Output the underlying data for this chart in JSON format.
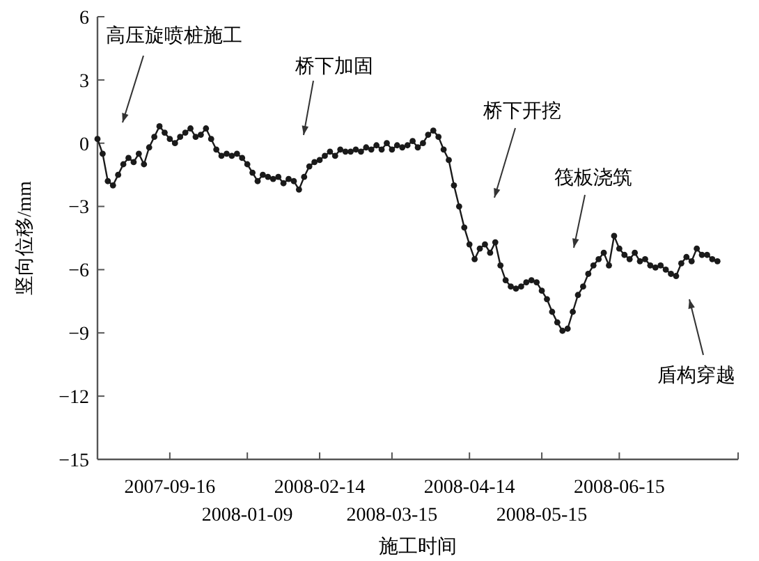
{
  "chart_data": {
    "type": "line",
    "xlabel": "施工时间",
    "ylabel": "竖向位移/mm",
    "marker": "circle",
    "line_style": "solid",
    "categories": [
      null,
      null,
      null,
      null,
      null,
      null,
      null,
      null,
      null,
      null,
      null,
      null,
      null,
      null,
      "2007-09-16",
      null,
      null,
      null,
      null,
      null,
      null,
      null,
      null,
      null,
      null,
      null,
      null,
      null,
      null,
      "2008-01-09",
      null,
      null,
      null,
      null,
      null,
      null,
      null,
      null,
      null,
      null,
      null,
      null,
      null,
      "2008-02-14",
      null,
      null,
      null,
      null,
      null,
      null,
      null,
      null,
      null,
      null,
      null,
      null,
      null,
      "2008-03-15",
      null,
      null,
      null,
      null,
      null,
      null,
      null,
      null,
      null,
      null,
      null,
      null,
      null,
      null,
      "2008-04-14",
      null,
      null,
      null,
      null,
      null,
      null,
      null,
      null,
      null,
      null,
      null,
      null,
      null,
      "2008-05-15",
      null,
      null,
      null,
      null,
      null,
      null,
      null,
      null,
      null,
      null,
      null,
      null,
      null,
      null,
      "2008-06-15",
      null,
      null,
      null,
      null,
      null,
      null,
      null,
      null,
      null,
      null,
      null,
      null,
      null,
      null,
      null,
      null,
      null,
      null,
      null
    ],
    "ylim": [
      -15,
      6
    ],
    "yticks": [
      -15,
      -12,
      -9,
      -6,
      -3,
      0,
      3,
      6
    ],
    "annotations": [
      "高压旋喷桩施工",
      "桥下加固",
      "桥下开挖",
      "筏板浇筑",
      "盾构穿越"
    ],
    "series": [
      {
        "color": "#1a1a1a",
        "values": [
          0.2,
          -0.5,
          -1.8,
          -2.0,
          -1.5,
          -1.0,
          -0.7,
          -0.9,
          -0.5,
          -1.0,
          -0.2,
          0.3,
          0.8,
          0.5,
          0.2,
          0.0,
          0.3,
          0.5,
          0.7,
          0.3,
          0.4,
          0.7,
          0.2,
          -0.3,
          -0.6,
          -0.5,
          -0.6,
          -0.5,
          -0.7,
          -1.0,
          -1.4,
          -1.8,
          -1.5,
          -1.6,
          -1.7,
          -1.6,
          -1.9,
          -1.7,
          -1.8,
          -2.2,
          -1.6,
          -1.1,
          -0.9,
          -0.8,
          -0.6,
          -0.4,
          -0.6,
          -0.3,
          -0.4,
          -0.4,
          -0.3,
          -0.4,
          -0.2,
          -0.3,
          -0.1,
          -0.3,
          0.0,
          -0.3,
          -0.1,
          -0.2,
          -0.1,
          0.1,
          -0.2,
          0.0,
          0.4,
          0.6,
          0.3,
          -0.3,
          -0.8,
          -2.0,
          -3.0,
          -4.0,
          -4.8,
          -5.5,
          -5.0,
          -4.8,
          -5.2,
          -4.7,
          -5.8,
          -6.5,
          -6.8,
          -6.9,
          -6.8,
          -6.6,
          -6.5,
          -6.6,
          -7.0,
          -7.4,
          -8.0,
          -8.5,
          -8.9,
          -8.8,
          -8.0,
          -7.2,
          -6.8,
          -6.2,
          -5.8,
          -5.5,
          -5.2,
          -5.8,
          -4.4,
          -5.0,
          -5.3,
          -5.5,
          -5.2,
          -5.6,
          -5.5,
          -5.8,
          -5.9,
          -5.8,
          -6.0,
          -6.2,
          -6.3,
          -5.7,
          -5.4,
          -5.6,
          -5.0,
          -5.3,
          -5.3,
          -5.5,
          -5.6
        ]
      }
    ]
  }
}
